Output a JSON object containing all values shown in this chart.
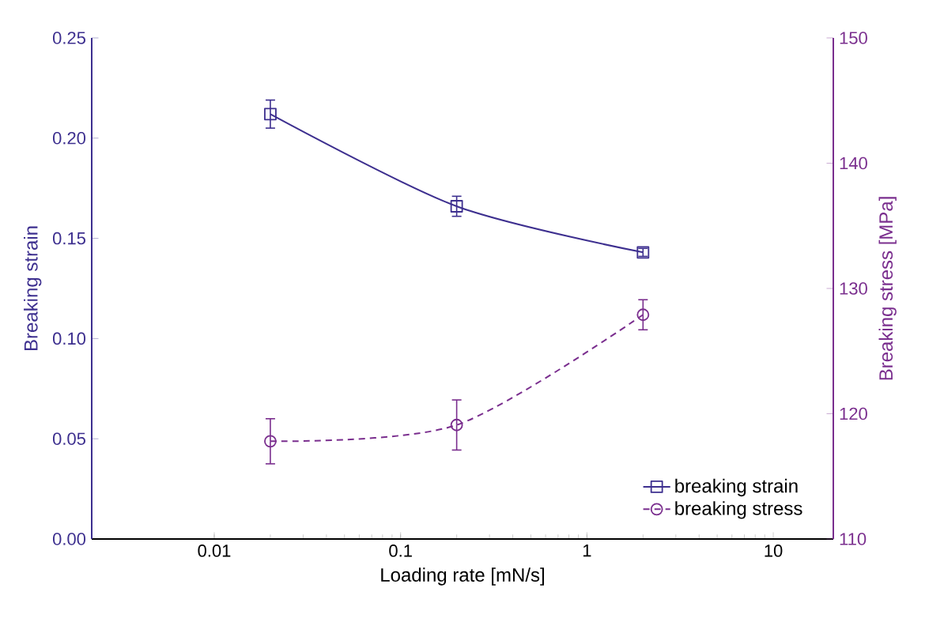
{
  "chart_data": {
    "type": "line",
    "x": [
      0.02,
      0.2,
      2
    ],
    "xlabel": "Loading rate [mN/s]",
    "ylabel": "Breaking strain",
    "y2label": "Breaking stress [MPa]",
    "log": "x",
    "xlim": [
      0.0022,
      21
    ],
    "xticks": [
      0.01,
      0.1,
      1,
      10
    ],
    "ylim": [
      0,
      0.25
    ],
    "yticks": [
      {
        "value": 0,
        "label": "0.00"
      },
      {
        "value": 0.05,
        "label": "0.05"
      },
      {
        "value": 0.1,
        "label": "0.10"
      },
      {
        "value": 0.15,
        "label": "0.15"
      },
      {
        "value": 0.2,
        "label": "0.20"
      },
      {
        "value": 0.25,
        "label": "0.25"
      }
    ],
    "y2lim": [
      110,
      150
    ],
    "y2ticks": [
      110,
      120,
      130,
      140,
      150
    ],
    "legend": "bottom right",
    "grid": false,
    "series": [
      {
        "name": "breaking strain",
        "color": "#3d2f8f",
        "values": [
          0.212,
          0.166,
          0.143
        ],
        "errors": [
          0.007,
          0.005,
          0.002
        ],
        "marker": "square",
        "line_style": "solid"
      },
      {
        "name": "breaking stress",
        "color": "#7a2e8e",
        "values": [
          117.8,
          119.1,
          127.9
        ],
        "errors": [
          1.8,
          2,
          1.2
        ],
        "marker": "circle",
        "line_style": "dashed",
        "axis": "y2"
      }
    ]
  }
}
